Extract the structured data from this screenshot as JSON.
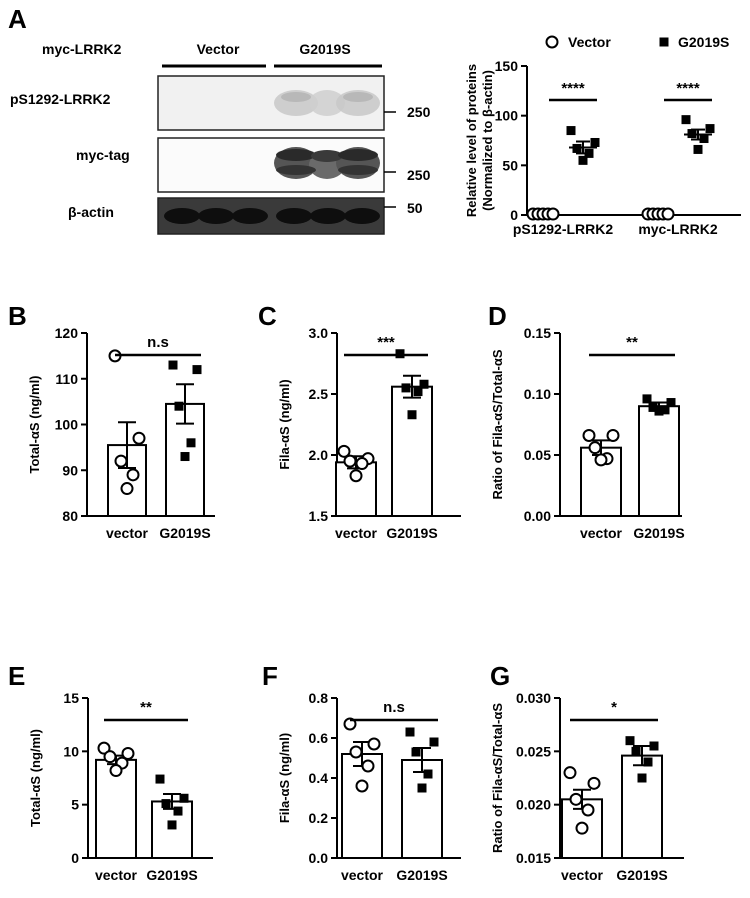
{
  "blot": {
    "panel_label": "A",
    "construct_label": "myc-LRRK2",
    "groups": [
      "Vector",
      "G2019S"
    ],
    "rows": [
      {
        "label": "pS1292-LRRK2",
        "marker": "250"
      },
      {
        "label": "myc-tag",
        "marker": "250"
      },
      {
        "label": "β-actin",
        "marker": "50"
      }
    ]
  },
  "chart_data": [
    {
      "id": "A",
      "type": "scatter",
      "title": "",
      "xlabel": "",
      "ylabel": "Relative level of proteins (Normalized to β-actin)",
      "categories": [
        "pS1292-LRRK2",
        "myc-LRRK2"
      ],
      "ylim": [
        0,
        150
      ],
      "yticks": [
        0,
        50,
        100,
        150
      ],
      "legend": {
        "placement": "top",
        "entries": [
          "Vector",
          "G2019S"
        ]
      },
      "series": [
        {
          "name": "Vector",
          "marker": "open-circle",
          "points": [
            [
              1,
              1,
              1,
              1,
              1
            ],
            [
              1,
              1,
              1,
              1,
              1
            ]
          ],
          "mean": [
            1,
            1
          ],
          "sem": [
            0,
            0
          ]
        },
        {
          "name": "G2019S",
          "marker": "filled-square",
          "points": [
            [
              85,
              73,
              67,
              62,
              55
            ],
            [
              96,
              87,
              82,
              77,
              66
            ]
          ],
          "mean": [
            68,
            81
          ],
          "sem": [
            6,
            5
          ]
        }
      ],
      "significance": [
        "****",
        "****"
      ]
    },
    {
      "id": "B",
      "type": "bar",
      "title": "",
      "xlabel": "",
      "ylabel": "Total-αS (ng/ml)",
      "categories": [
        "vector",
        "G2019S"
      ],
      "ylim": [
        80,
        120
      ],
      "yticks": [
        80,
        90,
        100,
        110,
        120
      ],
      "values": [
        95.5,
        104.5
      ],
      "sem": [
        5,
        4.3
      ],
      "points": [
        [
          115,
          97,
          92,
          89,
          86
        ],
        [
          113,
          112,
          104,
          96,
          93
        ]
      ],
      "significance": "n.s"
    },
    {
      "id": "C",
      "type": "bar",
      "title": "",
      "xlabel": "",
      "ylabel": "Fila-αS (ng/ml)",
      "categories": [
        "vector",
        "G2019S"
      ],
      "ylim": [
        1.5,
        3.0
      ],
      "yticks": [
        1.5,
        2.0,
        2.5,
        3.0
      ],
      "decimals": 1,
      "values": [
        1.94,
        2.56
      ],
      "sem": [
        0.05,
        0.09
      ],
      "points": [
        [
          2.03,
          1.97,
          1.95,
          1.93,
          1.83
        ],
        [
          2.83,
          2.58,
          2.55,
          2.52,
          2.33
        ]
      ],
      "significance": "***"
    },
    {
      "id": "D",
      "type": "bar",
      "title": "",
      "xlabel": "",
      "ylabel": "Ratio of Fila-αS/Total-αS",
      "categories": [
        "vector",
        "G2019S"
      ],
      "ylim": [
        0,
        0.15
      ],
      "yticks": [
        0,
        0.05,
        0.1,
        0.15
      ],
      "decimals": 2,
      "values": [
        0.056,
        0.09
      ],
      "sem": [
        0.006,
        0.003
      ],
      "points": [
        [
          0.066,
          0.066,
          0.056,
          0.047,
          0.046
        ],
        [
          0.096,
          0.093,
          0.089,
          0.087,
          0.086
        ]
      ],
      "significance": "**"
    },
    {
      "id": "E",
      "type": "bar",
      "title": "",
      "xlabel": "",
      "ylabel": "Total-αS (ng/ml)",
      "categories": [
        "vector",
        "G2019S"
      ],
      "ylim": [
        0,
        15
      ],
      "yticks": [
        0,
        5,
        10,
        15
      ],
      "values": [
        9.2,
        5.3
      ],
      "sem": [
        0.4,
        0.7
      ],
      "points": [
        [
          10.3,
          9.8,
          9.5,
          8.9,
          8.2
        ],
        [
          7.4,
          5.6,
          5.1,
          4.4,
          3.1
        ]
      ],
      "significance": "**"
    },
    {
      "id": "F",
      "type": "bar",
      "title": "",
      "xlabel": "",
      "ylabel": "Fila-αS (ng/ml)",
      "categories": [
        "vector",
        "G2019S"
      ],
      "ylim": [
        0,
        0.8
      ],
      "yticks": [
        0,
        0.2,
        0.4,
        0.6,
        0.8
      ],
      "decimals": 1,
      "values": [
        0.52,
        0.49
      ],
      "sem": [
        0.06,
        0.06
      ],
      "points": [
        [
          0.67,
          0.57,
          0.53,
          0.46,
          0.36
        ],
        [
          0.63,
          0.58,
          0.53,
          0.42,
          0.35
        ]
      ],
      "significance": "n.s"
    },
    {
      "id": "G",
      "type": "bar",
      "title": "",
      "xlabel": "",
      "ylabel": "Ratio of Fila-αS/Total-αS",
      "categories": [
        "vector",
        "G2019S"
      ],
      "ylim": [
        0.015,
        0.03
      ],
      "yticks": [
        0.015,
        0.02,
        0.025,
        0.03
      ],
      "decimals": 3,
      "values": [
        0.0205,
        0.0246
      ],
      "sem": [
        0.0009,
        0.0009
      ],
      "points": [
        [
          0.023,
          0.022,
          0.0205,
          0.0195,
          0.0178
        ],
        [
          0.026,
          0.0255,
          0.025,
          0.024,
          0.0225
        ]
      ],
      "significance": "*"
    }
  ]
}
